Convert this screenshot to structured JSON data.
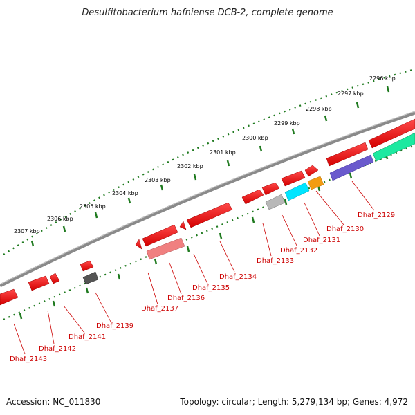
{
  "title": "Desulfitobacterium hafniense DCB-2, complete genome",
  "colors": {
    "backbone": "#777777",
    "tick_major": "#1f7a1f",
    "gene_red": "#ee0000",
    "gene_pink": "#f08080",
    "gene_gray": "#555555",
    "gene_lightgray": "#b8b8b8",
    "gene_cyan": "#00e5ff",
    "gene_orange": "#f39c12",
    "gene_purple": "#6a5acd",
    "gene_green": "#1de9a0",
    "label": "#cc0000"
  },
  "kbp_labels": [
    "2296 kbp",
    "2297 kbp",
    "2298 kbp",
    "2299 kbp",
    "2300 kbp",
    "2301 kbp",
    "2302 kbp",
    "2303 kbp",
    "2304 kbp",
    "2305 kbp",
    "2306 kbp",
    "2307 kbp"
  ],
  "gene_labels": [
    "Dhaf_2129",
    "Dhaf_2130",
    "Dhaf_2131",
    "Dhaf_2132",
    "Dhaf_2133",
    "Dhaf_2134",
    "Dhaf_2135",
    "Dhaf_2136",
    "Dhaf_2137",
    "Dhaf_2139",
    "Dhaf_2141",
    "Dhaf_2142",
    "Dhaf_2143"
  ],
  "footer": {
    "accession": "Accession: NC_011830",
    "info": "Topology: circular; Length: 5,279,134 bp; Genes: 4,972"
  }
}
